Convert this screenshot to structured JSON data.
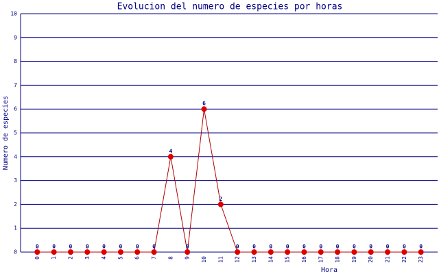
{
  "chart_data": {
    "type": "line",
    "title": "Evolucion del numero de especies por horas",
    "x_label": "Hora",
    "y_label": "Numero de especies",
    "categories": [
      "0",
      "1",
      "2",
      "3",
      "4",
      "5",
      "6",
      "7",
      "8",
      "9",
      "10",
      "11",
      "12",
      "13",
      "14",
      "15",
      "16",
      "17",
      "18",
      "19",
      "20",
      "21",
      "22",
      "23"
    ],
    "values": [
      0,
      0,
      0,
      0,
      0,
      0,
      0,
      0,
      4,
      0,
      6,
      2,
      0,
      0,
      0,
      0,
      0,
      0,
      0,
      0,
      0,
      0,
      0,
      0
    ],
    "color": "#b00000",
    "marker_color": "#dd0000",
    "ylim": [
      0,
      10
    ],
    "yticks": [
      0,
      1,
      2,
      3,
      4,
      5,
      6,
      7,
      8,
      9,
      10
    ],
    "grid": true,
    "grid_color": "#000080"
  }
}
